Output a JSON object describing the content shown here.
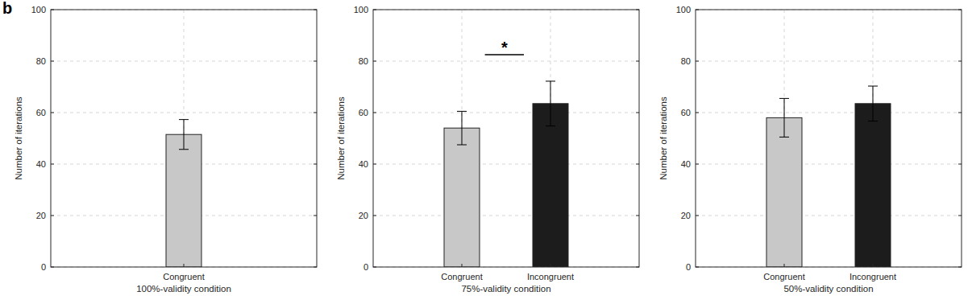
{
  "chart_data": [
    {
      "type": "bar",
      "panel_label": "b",
      "xlabel": "100%-validity condition",
      "ylabel": "Number of iterations",
      "categories": [
        "Congruent"
      ],
      "values": [
        51.5
      ],
      "errors": [
        5.8
      ],
      "colors": [
        "#c8c8c8"
      ],
      "ylim": [
        0,
        100
      ],
      "yticks": [
        0,
        20,
        40,
        60,
        80,
        100
      ],
      "grid": true
    },
    {
      "type": "bar",
      "xlabel": "75%-validity condition",
      "ylabel": "Number of iterations",
      "categories": [
        "Congruent",
        "Incongruent"
      ],
      "values": [
        54,
        63.5
      ],
      "errors": [
        6.5,
        8.7
      ],
      "colors": [
        "#c8c8c8",
        "#1c1c1c"
      ],
      "annotation": "*",
      "ylim": [
        0,
        100
      ],
      "yticks": [
        0,
        20,
        40,
        60,
        80,
        100
      ],
      "grid": true
    },
    {
      "type": "bar",
      "xlabel": "50%-validity condition",
      "ylabel": "Number of iterations",
      "categories": [
        "Congruent",
        "Incongruent"
      ],
      "values": [
        58,
        63.5
      ],
      "errors": [
        7.5,
        6.8
      ],
      "colors": [
        "#c8c8c8",
        "#1c1c1c"
      ],
      "ylim": [
        0,
        100
      ],
      "yticks": [
        0,
        20,
        40,
        60,
        80,
        100
      ],
      "grid": true
    }
  ]
}
